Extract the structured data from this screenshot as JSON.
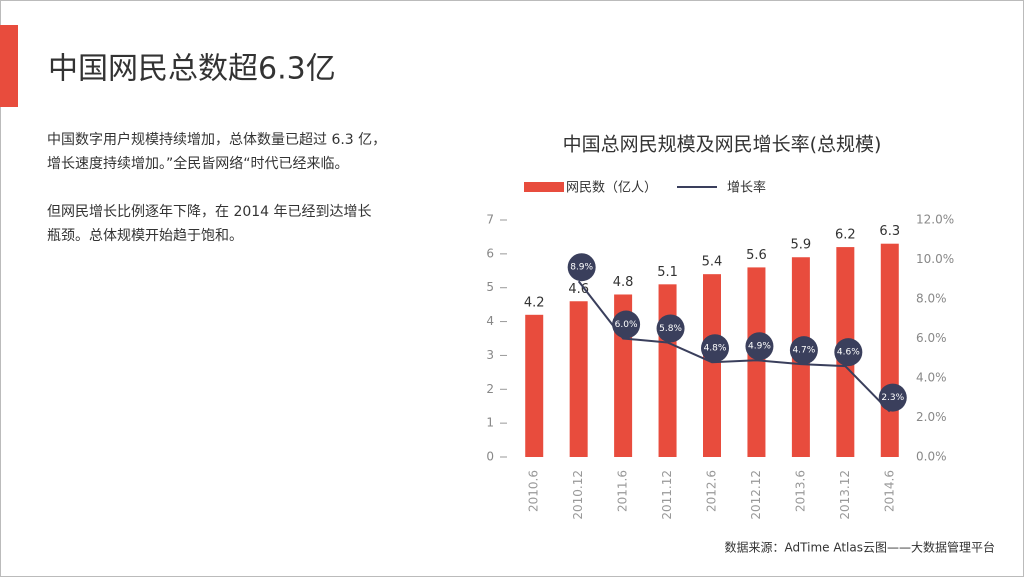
{
  "header": {
    "title": "中国网民总数超6.3亿"
  },
  "paragraphs": [
    [
      "中国数字用户规模持续增加，总体数量已超过 6.3 亿，",
      "增长速度持续增加。”全民皆网络“时代已经来临。"
    ],
    [
      "但网民增长比例逐年下降，在 2014 年已经到达增长",
      "瓶颈。总体规模开始趋于饱和。"
    ]
  ],
  "chart_data": {
    "type": "bar",
    "title": "中国总网民规模及网民增长率(总规模)",
    "categories": [
      "2010.6",
      "2010.12",
      "2011.6",
      "2011.12",
      "2012.6",
      "2012.12",
      "2013.6",
      "2013.12",
      "2014.6"
    ],
    "series": [
      {
        "name": "网民数（亿人）",
        "color": "#e84c3d",
        "type": "bar",
        "values": [
          4.2,
          4.6,
          4.8,
          5.1,
          5.4,
          5.6,
          5.9,
          6.2,
          6.3
        ]
      },
      {
        "name": "增长率",
        "color": "#3a3f5c",
        "type": "line",
        "axis": "y2",
        "values": [
          null,
          8.9,
          6.0,
          5.8,
          4.8,
          4.9,
          4.7,
          4.6,
          2.3
        ],
        "value_labels": [
          null,
          "8.9%",
          "6.0%",
          "5.8%",
          "4.8%",
          "4.9%",
          "4.7%",
          "4.6%",
          "2.3%"
        ]
      }
    ],
    "ylim": [
      0,
      7
    ],
    "yticks": [
      0,
      1,
      2,
      3,
      4,
      5,
      6,
      7
    ],
    "y2lim": [
      0,
      12
    ],
    "y2ticks": [
      {
        "value": 0,
        "label": "0.0%"
      },
      {
        "value": 2,
        "label": "2.0%"
      },
      {
        "value": 4,
        "label": "4.0%"
      },
      {
        "value": 6,
        "label": "6.0%"
      },
      {
        "value": 8,
        "label": "8.0%"
      },
      {
        "value": 10,
        "label": "10.0%"
      },
      {
        "value": 12,
        "label": "12.0%"
      }
    ],
    "legend": "top"
  },
  "footer": {
    "source": "数据来源：AdTime Atlas云图——大数据管理平台"
  }
}
